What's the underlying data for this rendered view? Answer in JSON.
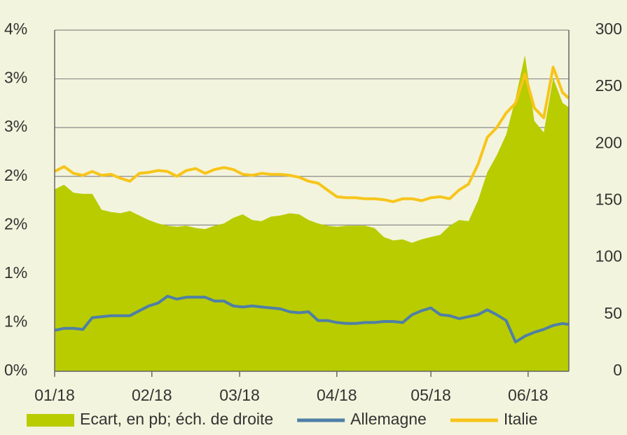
{
  "chart_data": {
    "type": "line",
    "x": [
      0,
      3,
      6,
      9,
      12,
      15,
      18,
      21,
      24,
      27,
      30,
      33,
      36,
      39,
      42,
      45,
      48,
      51,
      54,
      57,
      60,
      63,
      66,
      69,
      72,
      75,
      78,
      81,
      84,
      87,
      90,
      93,
      96,
      99,
      102,
      105,
      108,
      111,
      114,
      117,
      120,
      123,
      126,
      129,
      132,
      135,
      138,
      141,
      144,
      147,
      150,
      153,
      156,
      159,
      162,
      164
    ],
    "xlim": [
      0,
      164
    ],
    "xticks": [
      {
        "value": 0,
        "label": "01/18"
      },
      {
        "value": 31,
        "label": "02/18"
      },
      {
        "value": 59,
        "label": "03/18"
      },
      {
        "value": 90,
        "label": "04/18"
      },
      {
        "value": 120,
        "label": "05/18"
      },
      {
        "value": 151,
        "label": "06/18"
      }
    ],
    "ylim": [
      0,
      3.5
    ],
    "yticks": [
      {
        "value": 0,
        "label": "0%"
      },
      {
        "value": 0.5,
        "label": "1%"
      },
      {
        "value": 1,
        "label": "1%"
      },
      {
        "value": 1.5,
        "label": "2%"
      },
      {
        "value": 2,
        "label": "2%"
      },
      {
        "value": 2.5,
        "label": "3%"
      },
      {
        "value": 3,
        "label": "3%"
      },
      {
        "value": 3.5,
        "label": "4%"
      }
    ],
    "y2lim": [
      0,
      300
    ],
    "y2ticks": [
      0,
      50,
      100,
      150,
      200,
      250,
      300
    ],
    "grid": true,
    "legend": "bottom",
    "series": [
      {
        "name": "Ecart, en pb; éch. de droite",
        "type": "area",
        "axis": "y2",
        "color": "#b8cc00",
        "values": [
          160,
          164,
          157,
          156,
          156,
          142,
          140,
          139,
          141,
          137,
          133,
          130,
          128,
          127,
          128,
          126,
          125,
          128,
          130,
          135,
          138,
          133,
          132,
          136,
          137,
          139,
          138,
          133,
          130,
          128,
          127,
          128,
          128,
          128,
          126,
          118,
          115,
          116,
          113,
          116,
          118,
          120,
          128,
          133,
          132,
          150,
          175,
          190,
          208,
          240,
          278,
          220,
          210,
          258,
          236,
          232
        ]
      },
      {
        "name": "Allemagne",
        "type": "line",
        "color": "#4f7fa6",
        "values": [
          0.42,
          0.44,
          0.44,
          0.43,
          0.55,
          0.56,
          0.57,
          0.57,
          0.57,
          0.62,
          0.67,
          0.7,
          0.77,
          0.74,
          0.76,
          0.76,
          0.76,
          0.72,
          0.72,
          0.67,
          0.66,
          0.67,
          0.66,
          0.65,
          0.64,
          0.61,
          0.6,
          0.61,
          0.52,
          0.52,
          0.5,
          0.49,
          0.49,
          0.5,
          0.5,
          0.51,
          0.51,
          0.5,
          0.58,
          0.62,
          0.65,
          0.58,
          0.57,
          0.54,
          0.56,
          0.58,
          0.63,
          0.58,
          0.52,
          0.3,
          0.36,
          0.4,
          0.43,
          0.47,
          0.49,
          0.48
        ]
      },
      {
        "name": "Italie",
        "type": "line",
        "color": "#f7c51a",
        "values": [
          2.05,
          2.1,
          2.03,
          2.01,
          2.05,
          2.01,
          2.02,
          1.98,
          1.95,
          2.03,
          2.04,
          2.06,
          2.05,
          2.0,
          2.06,
          2.08,
          2.03,
          2.07,
          2.09,
          2.07,
          2.02,
          2.01,
          2.03,
          2.02,
          2.02,
          2.01,
          1.99,
          1.95,
          1.93,
          1.86,
          1.79,
          1.78,
          1.78,
          1.77,
          1.77,
          1.76,
          1.74,
          1.77,
          1.77,
          1.75,
          1.78,
          1.79,
          1.77,
          1.86,
          1.92,
          2.12,
          2.4,
          2.5,
          2.65,
          2.75,
          3.05,
          2.7,
          2.6,
          3.12,
          2.86,
          2.8
        ]
      }
    ]
  }
}
